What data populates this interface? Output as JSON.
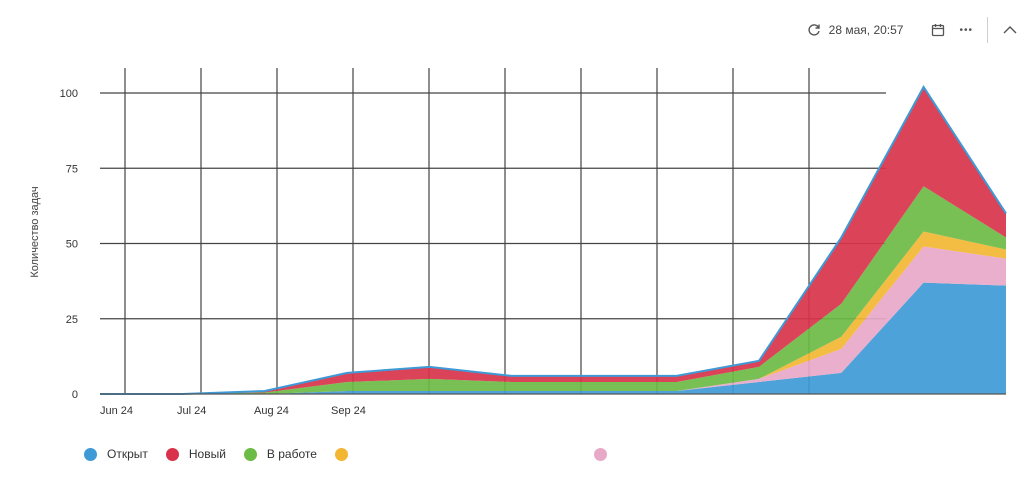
{
  "toolbar": {
    "date_label": "28 мая, 20:57",
    "more_label": "•••"
  },
  "colors": {
    "open": "#3e9ad6",
    "new": "#d8334a",
    "inwork": "#6cbb45",
    "yellow": "#f2b632",
    "pink": "#e8a8c8",
    "grid": "#444444"
  },
  "icons": [
    "refresh-icon",
    "calendar-icon",
    "more-icon",
    "collapse-icon"
  ],
  "chart_data": {
    "type": "area",
    "stacked": true,
    "title": "",
    "ylabel": "Количество задач",
    "xlabel": "",
    "ylim": [
      0,
      100
    ],
    "yticks": [
      0,
      25,
      50,
      75,
      100
    ],
    "xticks": [
      "Jun 24",
      "Jul 24",
      "Aug 24",
      "Sep 24"
    ],
    "grid": true,
    "legend_position": "bottom-left",
    "x_count": 12,
    "series": [
      {
        "name": "Открыт",
        "color": "#3e9ad6",
        "values": [
          0,
          0,
          0,
          1,
          1,
          1,
          1,
          1,
          4,
          7,
          37,
          36
        ]
      },
      {
        "name": "",
        "color": "#e8a8c8",
        "values": [
          0,
          0,
          0,
          0,
          0,
          0,
          0,
          0,
          1,
          8,
          12,
          9
        ]
      },
      {
        "name": "",
        "color": "#f2b632",
        "values": [
          0,
          0,
          0,
          0,
          0,
          0,
          0,
          0,
          0,
          4,
          5,
          3
        ]
      },
      {
        "name": "В работе",
        "color": "#6cbb45",
        "values": [
          0,
          0,
          0.5,
          3,
          4,
          3,
          3,
          3,
          4,
          11,
          15,
          4
        ]
      },
      {
        "name": "Новый",
        "color": "#d8334a",
        "values": [
          0,
          0,
          0.5,
          3,
          4,
          2,
          2,
          2,
          2,
          22,
          33,
          8
        ]
      }
    ]
  },
  "legend": [
    {
      "label": "Открыт",
      "color": "#3e9ad6"
    },
    {
      "label": "Новый",
      "color": "#d8334a"
    },
    {
      "label": "В работе",
      "color": "#6cbb45"
    },
    {
      "label": "",
      "color": "#f2b632"
    },
    {
      "label": "",
      "color": "#e8a8c8"
    }
  ]
}
